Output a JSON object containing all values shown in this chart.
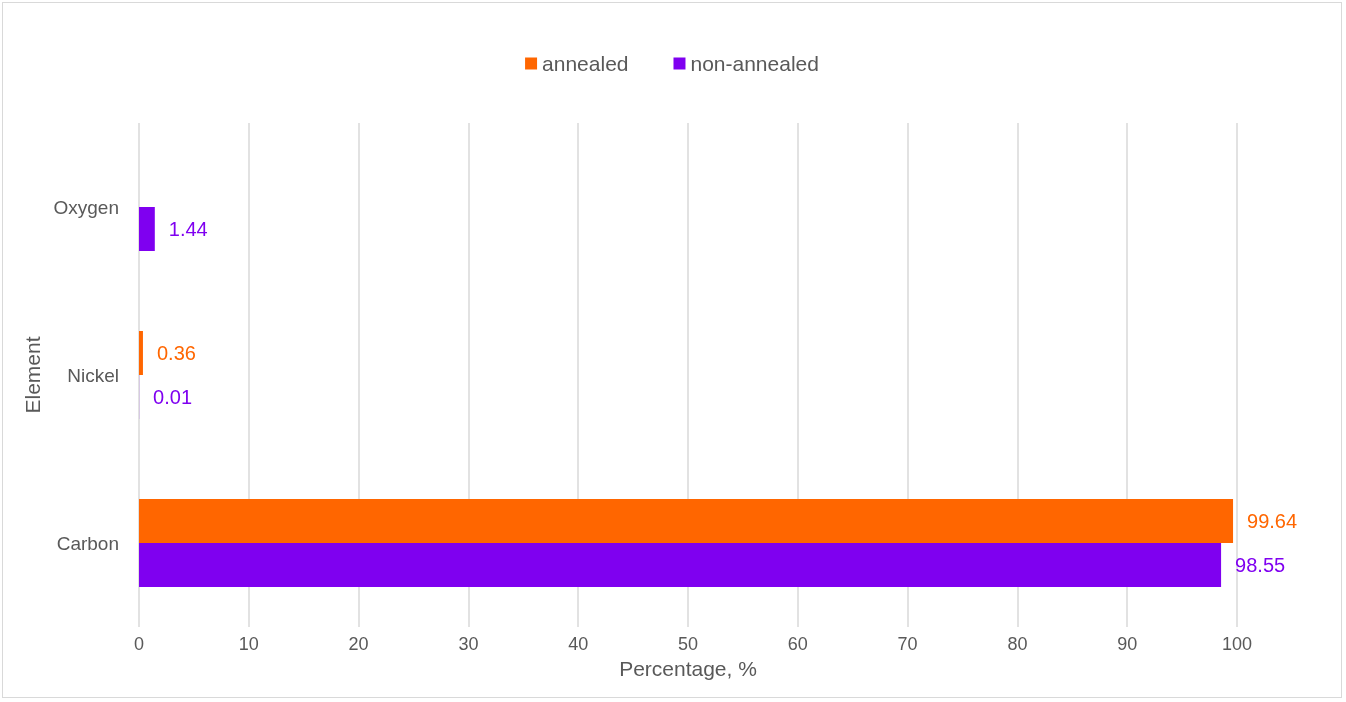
{
  "chart_data": {
    "type": "bar",
    "orientation": "horizontal",
    "xlabel": "Percentage, %",
    "ylabel": "Element",
    "categories": [
      "Oxygen",
      "Nickel",
      "Carbon"
    ],
    "series": [
      {
        "name": "annealed",
        "color": "#ff6600",
        "values": [
          null,
          0.36,
          99.64
        ]
      },
      {
        "name": "non-annealed",
        "color": "#7f00f0",
        "values": [
          1.44,
          0.01,
          98.55
        ]
      }
    ],
    "xlim": [
      0,
      100
    ],
    "xticks": [
      0,
      10,
      20,
      30,
      40,
      50,
      60,
      70,
      80,
      90,
      100
    ],
    "grid": "x",
    "legend": "top",
    "data_labels": true
  }
}
